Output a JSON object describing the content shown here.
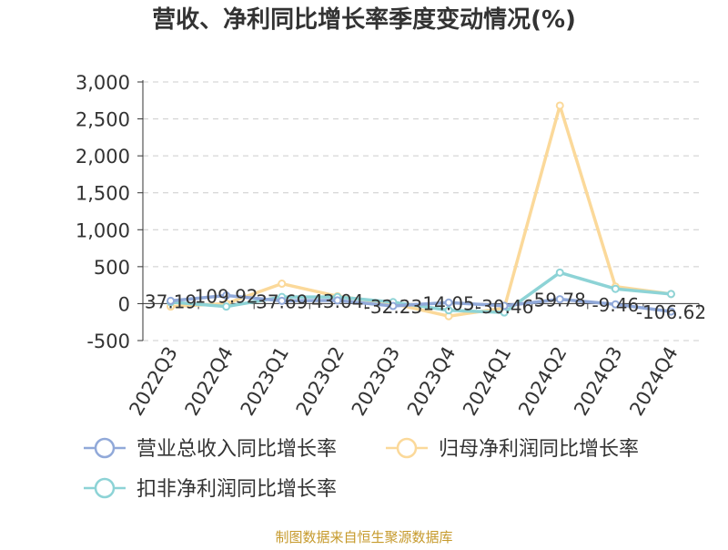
{
  "chart_data": {
    "type": "line",
    "title": "营收、净利同比增长率季度变动情况(%)",
    "categories": [
      "2022Q3",
      "2022Q4",
      "2023Q1",
      "2023Q2",
      "2023Q3",
      "2023Q4",
      "2024Q1",
      "2024Q2",
      "2024Q3",
      "2024Q4"
    ],
    "ylim": [
      -500,
      3000
    ],
    "yticks": [
      -500,
      0,
      500,
      1000,
      1500,
      2000,
      2500,
      3000
    ],
    "ytick_labels": [
      "-500",
      "0",
      "500",
      "1,000",
      "1,500",
      "2,000",
      "2,500",
      "3,000"
    ],
    "grid": true,
    "legend_position": "bottom",
    "series": [
      {
        "name": "营业总收入同比增长率",
        "color": "#91a9d9",
        "values": [
          37.19,
          109.92,
          37.69,
          43.04,
          -32.23,
          14.05,
          -30.46,
          59.78,
          -9.46,
          -106.62
        ],
        "labels": [
          "37.19",
          "109.92",
          "37.69",
          "43.04",
          "-32.23",
          "14.05",
          "-30.46",
          "59.78",
          "-9.46",
          "-106.62"
        ]
      },
      {
        "name": "归母净利润同比增长率",
        "color": "#fbd99a",
        "values": [
          -40,
          0,
          270,
          100,
          0,
          -170,
          -60,
          2680,
          230,
          130
        ]
      },
      {
        "name": "扣非净利润同比增长率",
        "color": "#8dd3d6",
        "values": [
          20,
          -40,
          90,
          90,
          20,
          -90,
          -120,
          420,
          200,
          130
        ]
      }
    ],
    "source": "制图数据来自恒生聚源数据库"
  }
}
